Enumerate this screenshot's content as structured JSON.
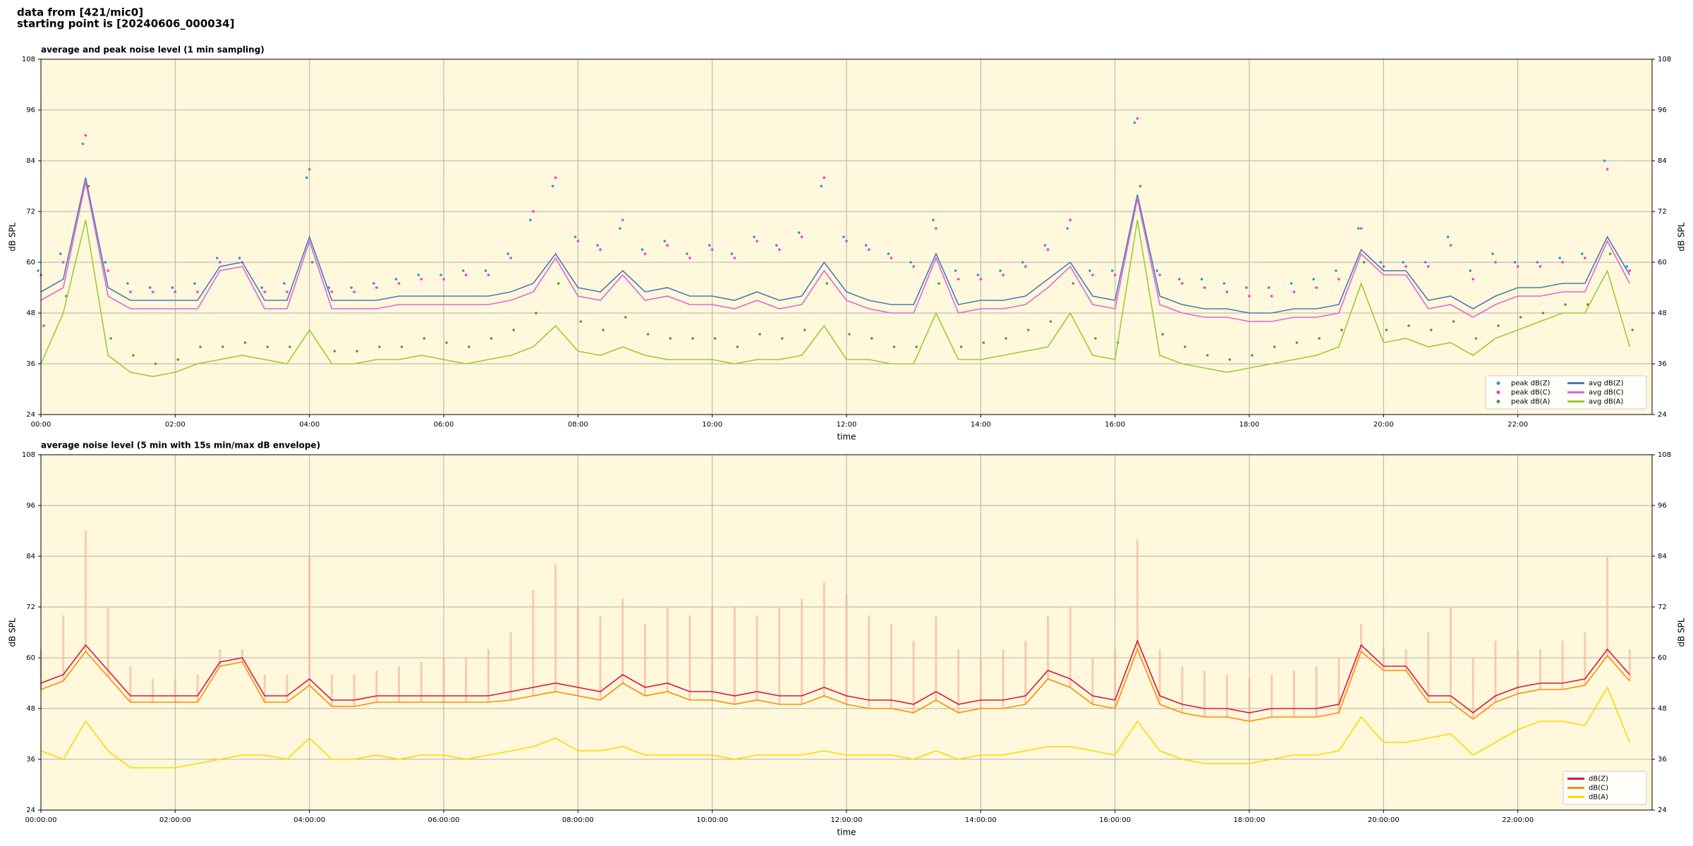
{
  "header": [
    "data from [421/mic0]",
    "starting point is [20240606_000034]"
  ],
  "chart_data": [
    {
      "type": "line",
      "title": "average and peak noise level (1 min sampling)",
      "xlabel": "time",
      "ylabel": "dB SPL",
      "background": "#fff8dc",
      "grid": true,
      "legend": "lower right",
      "legend_columns": 2,
      "xlim": [
        0,
        1440
      ],
      "ylim": [
        24,
        108
      ],
      "xticks": [
        {
          "value": 0,
          "label": "00:00"
        },
        {
          "value": 120,
          "label": "02:00"
        },
        {
          "value": 240,
          "label": "04:00"
        },
        {
          "value": 360,
          "label": "06:00"
        },
        {
          "value": 480,
          "label": "08:00"
        },
        {
          "value": 600,
          "label": "10:00"
        },
        {
          "value": 720,
          "label": "12:00"
        },
        {
          "value": 840,
          "label": "14:00"
        },
        {
          "value": 960,
          "label": "16:00"
        },
        {
          "value": 1080,
          "label": "18:00"
        },
        {
          "value": 1200,
          "label": "20:00"
        },
        {
          "value": 1320,
          "label": "22:00"
        }
      ],
      "yticks": [
        24,
        36,
        48,
        60,
        72,
        84,
        96,
        108
      ],
      "x": [
        0,
        20,
        40,
        60,
        80,
        100,
        120,
        140,
        160,
        180,
        200,
        220,
        240,
        260,
        280,
        300,
        320,
        340,
        360,
        380,
        400,
        420,
        440,
        460,
        480,
        500,
        520,
        540,
        560,
        580,
        600,
        620,
        640,
        660,
        680,
        700,
        720,
        740,
        760,
        780,
        800,
        820,
        840,
        860,
        880,
        900,
        920,
        940,
        960,
        980,
        1000,
        1020,
        1040,
        1060,
        1080,
        1100,
        1120,
        1140,
        1160,
        1180,
        1200,
        1220,
        1240,
        1260,
        1280,
        1300,
        1320,
        1340,
        1360,
        1380,
        1400,
        1420
      ],
      "series": [
        {
          "name": "peak dB(Z)",
          "type": "scatter",
          "color": "#1f9bd6",
          "values": [
            58,
            62,
            88,
            60,
            55,
            54,
            54,
            55,
            61,
            61,
            54,
            55,
            80,
            54,
            54,
            55,
            56,
            57,
            57,
            58,
            58,
            62,
            70,
            78,
            66,
            64,
            68,
            63,
            65,
            62,
            64,
            62,
            66,
            64,
            67,
            78,
            66,
            64,
            62,
            60,
            70,
            58,
            57,
            58,
            60,
            64,
            68,
            58,
            58,
            93,
            58,
            56,
            56,
            55,
            54,
            54,
            55,
            56,
            58,
            68,
            60,
            60,
            60,
            66,
            58,
            62,
            60,
            60,
            61,
            62,
            84,
            59
          ]
        },
        {
          "name": "peak dB(C)",
          "type": "scatter",
          "color": "#ff33cc",
          "values": [
            57,
            60,
            90,
            58,
            53,
            53,
            53,
            53,
            60,
            60,
            53,
            53,
            82,
            53,
            53,
            54,
            55,
            56,
            56,
            57,
            57,
            61,
            72,
            80,
            65,
            63,
            70,
            62,
            64,
            61,
            63,
            61,
            65,
            63,
            66,
            80,
            65,
            63,
            61,
            59,
            68,
            56,
            56,
            57,
            59,
            63,
            70,
            57,
            57,
            94,
            57,
            55,
            54,
            53,
            52,
            52,
            53,
            54,
            56,
            68,
            59,
            59,
            59,
            64,
            56,
            60,
            59,
            59,
            60,
            61,
            82,
            58
          ]
        },
        {
          "name": "peak dB(A)",
          "type": "scatter",
          "color": "#5a9a2a",
          "values": [
            45,
            52,
            78,
            42,
            38,
            36,
            37,
            40,
            40,
            41,
            40,
            40,
            60,
            39,
            39,
            40,
            40,
            42,
            41,
            40,
            42,
            44,
            48,
            55,
            46,
            44,
            47,
            43,
            42,
            42,
            42,
            40,
            43,
            42,
            44,
            55,
            43,
            42,
            40,
            40,
            55,
            40,
            41,
            42,
            44,
            46,
            55,
            42,
            41,
            78,
            43,
            40,
            38,
            37,
            38,
            40,
            41,
            42,
            44,
            60,
            44,
            45,
            44,
            46,
            42,
            45,
            47,
            48,
            50,
            50,
            62,
            44
          ]
        },
        {
          "name": "avg dB(Z)",
          "type": "line",
          "color": "#4a7ab8",
          "values": [
            53,
            56,
            80,
            54,
            51,
            51,
            51,
            51,
            59,
            60,
            51,
            51,
            66,
            51,
            51,
            51,
            52,
            52,
            52,
            52,
            52,
            53,
            55,
            62,
            54,
            53,
            58,
            53,
            54,
            52,
            52,
            51,
            53,
            51,
            52,
            60,
            53,
            51,
            50,
            50,
            62,
            50,
            51,
            51,
            52,
            56,
            60,
            52,
            51,
            76,
            52,
            50,
            49,
            49,
            48,
            48,
            49,
            49,
            50,
            63,
            58,
            58,
            51,
            52,
            49,
            52,
            54,
            54,
            55,
            55,
            66,
            57
          ]
        },
        {
          "name": "avg dB(C)",
          "type": "line",
          "color": "#e066d6",
          "values": [
            51,
            54,
            79,
            52,
            49,
            49,
            49,
            49,
            58,
            59,
            49,
            49,
            65,
            49,
            49,
            49,
            50,
            50,
            50,
            50,
            50,
            51,
            53,
            61,
            52,
            51,
            57,
            51,
            52,
            50,
            50,
            49,
            51,
            49,
            50,
            58,
            51,
            49,
            48,
            48,
            61,
            48,
            49,
            49,
            50,
            54,
            59,
            50,
            49,
            75,
            50,
            48,
            47,
            47,
            46,
            46,
            47,
            47,
            48,
            62,
            57,
            57,
            49,
            50,
            47,
            50,
            52,
            52,
            53,
            53,
            65,
            55
          ]
        },
        {
          "name": "avg dB(A)",
          "type": "line",
          "color": "#9acd32",
          "values": [
            36,
            48,
            70,
            38,
            34,
            33,
            34,
            36,
            37,
            38,
            37,
            36,
            44,
            36,
            36,
            37,
            37,
            38,
            37,
            36,
            37,
            38,
            40,
            45,
            39,
            38,
            40,
            38,
            37,
            37,
            37,
            36,
            37,
            37,
            38,
            45,
            37,
            37,
            36,
            36,
            48,
            37,
            37,
            38,
            39,
            40,
            48,
            38,
            37,
            70,
            38,
            36,
            35,
            34,
            35,
            36,
            37,
            38,
            40,
            55,
            41,
            42,
            40,
            41,
            38,
            42,
            44,
            46,
            48,
            48,
            58,
            40
          ]
        }
      ]
    },
    {
      "type": "line",
      "title": "average noise level (5 min with 15s min/max dB envelope)",
      "xlabel": "time",
      "ylabel": "dB SPL",
      "background": "#fff8dc",
      "grid": true,
      "legend": "lower right",
      "legend_columns": 1,
      "xlim": [
        0,
        1440
      ],
      "ylim": [
        24,
        108
      ],
      "xticks": [
        {
          "value": 0,
          "label": "00:00:00"
        },
        {
          "value": 120,
          "label": "02:00:00"
        },
        {
          "value": 240,
          "label": "04:00:00"
        },
        {
          "value": 360,
          "label": "06:00:00"
        },
        {
          "value": 480,
          "label": "08:00:00"
        },
        {
          "value": 600,
          "label": "10:00:00"
        },
        {
          "value": 720,
          "label": "12:00:00"
        },
        {
          "value": 840,
          "label": "14:00:00"
        },
        {
          "value": 960,
          "label": "16:00:00"
        },
        {
          "value": 1080,
          "label": "18:00:00"
        },
        {
          "value": 1200,
          "label": "20:00:00"
        },
        {
          "value": 1320,
          "label": "22:00:00"
        }
      ],
      "yticks": [
        24,
        36,
        48,
        60,
        72,
        84,
        96,
        108
      ],
      "x": [
        0,
        20,
        40,
        60,
        80,
        100,
        120,
        140,
        160,
        180,
        200,
        220,
        240,
        260,
        280,
        300,
        320,
        340,
        360,
        380,
        400,
        420,
        440,
        460,
        480,
        500,
        520,
        540,
        560,
        580,
        600,
        620,
        640,
        660,
        680,
        700,
        720,
        740,
        760,
        780,
        800,
        820,
        840,
        860,
        880,
        900,
        920,
        940,
        960,
        980,
        1000,
        1020,
        1040,
        1060,
        1080,
        1100,
        1120,
        1140,
        1160,
        1180,
        1200,
        1220,
        1240,
        1260,
        1280,
        1300,
        1320,
        1340,
        1360,
        1380,
        1400,
        1420
      ],
      "envelope": {
        "color": "#f4b8a0",
        "values": [
          62,
          70,
          90,
          72,
          58,
          55,
          55,
          56,
          62,
          62,
          56,
          56,
          84,
          56,
          56,
          57,
          58,
          59,
          60,
          60,
          62,
          66,
          76,
          82,
          72,
          70,
          74,
          68,
          72,
          70,
          72,
          72,
          70,
          72,
          74,
          78,
          75,
          70,
          68,
          64,
          70,
          62,
          60,
          62,
          64,
          70,
          72,
          60,
          62,
          88,
          62,
          58,
          57,
          56,
          55,
          56,
          57,
          58,
          60,
          68,
          62,
          62,
          66,
          72,
          60,
          64,
          62,
          62,
          64,
          66,
          84,
          62
        ]
      },
      "series": [
        {
          "name": "dB(Z)",
          "type": "line",
          "color": "#dc143c",
          "values": [
            54,
            56,
            63,
            57,
            51,
            51,
            51,
            51,
            59,
            60,
            51,
            51,
            55,
            50,
            50,
            51,
            51,
            51,
            51,
            51,
            51,
            52,
            53,
            54,
            53,
            52,
            56,
            53,
            54,
            52,
            52,
            51,
            52,
            51,
            51,
            53,
            51,
            50,
            50,
            49,
            52,
            49,
            50,
            50,
            51,
            57,
            55,
            51,
            50,
            64,
            51,
            49,
            48,
            48,
            47,
            48,
            48,
            48,
            49,
            63,
            58,
            58,
            51,
            51,
            47,
            51,
            53,
            54,
            54,
            55,
            62,
            56
          ]
        },
        {
          "name": "dB(C)",
          "type": "line",
          "color": "#ff8c00",
          "values": [
            52.5,
            54.5,
            61.5,
            55.5,
            49.5,
            49.5,
            49.5,
            49.5,
            58,
            59,
            49.5,
            49.5,
            53.5,
            48.5,
            48.5,
            49.5,
            49.5,
            49.5,
            49.5,
            49.5,
            49.5,
            50,
            51,
            52,
            51,
            50,
            54,
            51,
            52,
            50,
            50,
            49,
            50,
            49,
            49,
            51,
            49,
            48,
            48,
            47,
            50,
            47,
            48,
            48,
            49,
            55,
            53,
            49,
            48,
            62,
            49,
            47,
            46,
            46,
            45,
            46,
            46,
            46,
            47,
            61.5,
            57,
            57,
            49.5,
            49.5,
            45.5,
            49.5,
            51.5,
            52.5,
            52.5,
            53.5,
            60.5,
            54.5
          ]
        },
        {
          "name": "dB(A)",
          "type": "line",
          "color": "#ffd700",
          "values": [
            38,
            36,
            45,
            38,
            34,
            34,
            34,
            35,
            36,
            37,
            37,
            36,
            41,
            36,
            36,
            37,
            36,
            37,
            37,
            36,
            37,
            38,
            39,
            41,
            38,
            38,
            39,
            37,
            37,
            37,
            37,
            36,
            37,
            37,
            37,
            38,
            37,
            37,
            37,
            36,
            38,
            36,
            37,
            37,
            38,
            39,
            39,
            38,
            37,
            45,
            38,
            36,
            35,
            35,
            35,
            36,
            37,
            37,
            38,
            46,
            40,
            40,
            41,
            42,
            37,
            40,
            43,
            45,
            45,
            44,
            53,
            40
          ]
        }
      ]
    }
  ]
}
